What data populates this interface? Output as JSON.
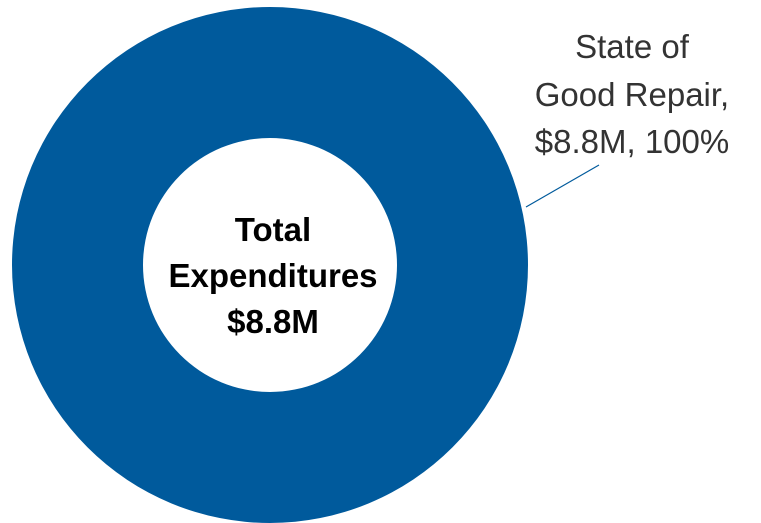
{
  "chart_data": {
    "type": "pie",
    "donut": true,
    "categories": [
      "State of Good Repair"
    ],
    "values": [
      8.8
    ],
    "unit": "$M",
    "colors": [
      "#005A9C"
    ],
    "center_label": [
      "Total",
      "Expenditures",
      "$8.8M"
    ],
    "data_labels": [
      [
        "State of",
        "Good Repair,",
        "$8.8M, 100%"
      ]
    ],
    "legend": "none"
  }
}
